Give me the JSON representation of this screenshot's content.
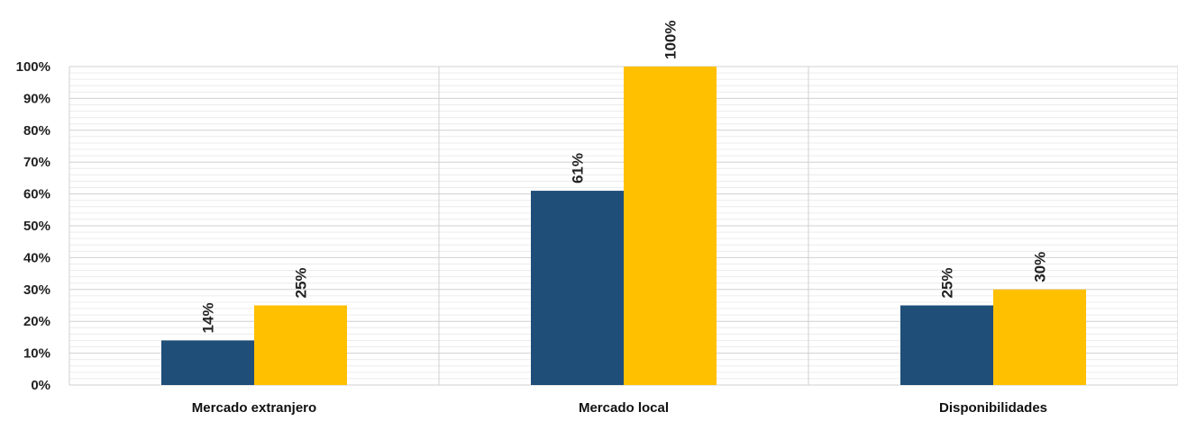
{
  "chart_data": {
    "type": "bar",
    "categories": [
      "Mercado extranjero",
      "Mercado local",
      "Disponibilidades"
    ],
    "series": [
      {
        "values": [
          14,
          61,
          25
        ],
        "labels": [
          "14%",
          "61%",
          "25%"
        ],
        "color": "#1f4e79"
      },
      {
        "values": [
          25,
          100,
          30
        ],
        "labels": [
          "25%",
          "100%",
          "30%"
        ],
        "color": "#ffc000"
      }
    ],
    "ylim": [
      0,
      100
    ],
    "yticks": [
      "0%",
      "10%",
      "20%",
      "30%",
      "40%",
      "50%",
      "60%",
      "70%",
      "80%",
      "90%",
      "100%"
    ],
    "grid": true,
    "legend": "none"
  }
}
